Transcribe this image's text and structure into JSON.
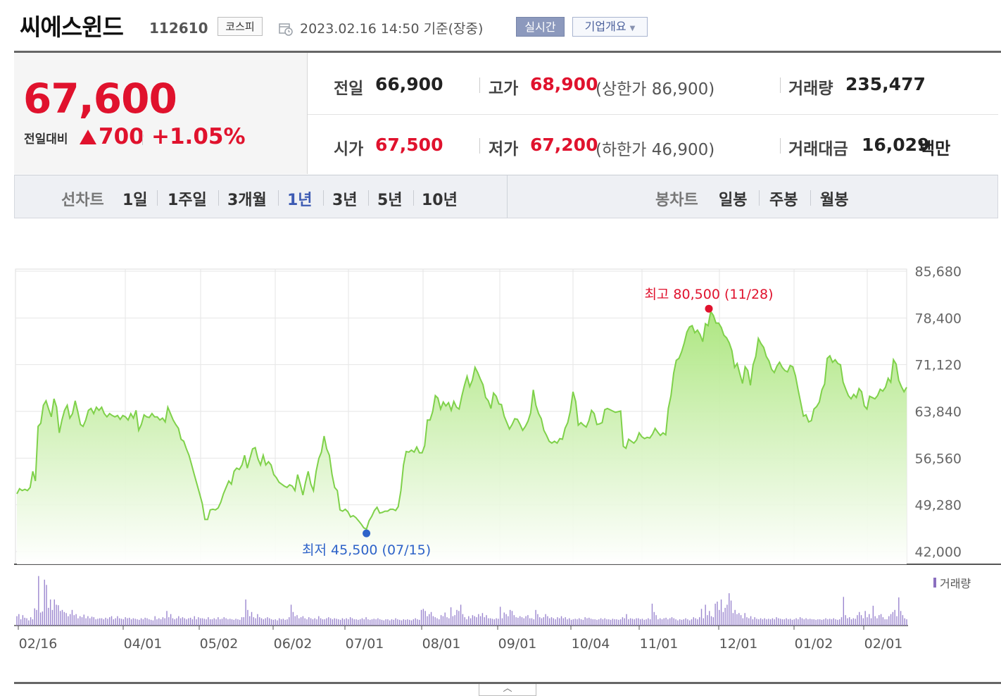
{
  "header": {
    "name": "씨에스윈드",
    "code": "112610",
    "market": "코스피",
    "datetime": "2023.02.16 14:50 기준(장중)",
    "realtime_label": "실시간",
    "overview_label": "기업개요"
  },
  "price": {
    "current": "67,600",
    "prev_diff_label": "전일대비",
    "diff": "700",
    "pct": "+1.05%",
    "up_color": "#e0122d"
  },
  "stats": {
    "prev_label": "전일",
    "prev_value": "66,900",
    "high_label": "고가",
    "high_value": "68,900",
    "upper_limit_label": "(상한가 86,900)",
    "volume_label": "거래량",
    "volume_value": "235,477",
    "open_label": "시가",
    "open_value": "67,500",
    "low_label": "저가",
    "low_value": "67,200",
    "lower_limit_label": "(하한가 46,900)",
    "amount_label": "거래대금",
    "amount_value": "16,029",
    "amount_unit": "백만"
  },
  "period_tabs": {
    "line_label": "선차트",
    "line_items": [
      "1일",
      "1주일",
      "3개월",
      "1년",
      "3년",
      "5년",
      "10년"
    ],
    "active": "1년",
    "candle_label": "봉차트",
    "candle_items": [
      "일봉",
      "주봉",
      "월봉"
    ]
  },
  "chart_data": {
    "type": "area",
    "line_color": "#7fd14a",
    "fill_color": "#c9f0a4",
    "y_ticks": [
      "85,680",
      "78,400",
      "71,120",
      "63,840",
      "56,560",
      "49,280",
      "42,000"
    ],
    "ylim": [
      42000,
      85680
    ],
    "x_ticks": [
      "02/16",
      "04/01",
      "05/02",
      "06/02",
      "07/01",
      "08/01",
      "09/01",
      "10/04",
      "11/01",
      "12/01",
      "01/02",
      "02/01"
    ],
    "high_label": "최고 80,500 (11/28)",
    "low_label": "최저 45,500 (07/15)",
    "high_value": 80500,
    "low_value": 45500,
    "volume_label": "거래량",
    "series": [
      {
        "values": [
          51000,
          51800,
          51500,
          51700,
          51500,
          52000,
          54500,
          53000,
          61500,
          62000,
          64800,
          65500,
          64200,
          63000,
          65800,
          64500,
          60500,
          62500,
          64000,
          64800,
          62800,
          63500,
          65500,
          63800,
          61800,
          61500,
          62500,
          64000,
          64300,
          63500,
          64500,
          64000,
          64500,
          63500,
          63000,
          63500,
          63200,
          63000,
          63200,
          62600,
          63200,
          63000,
          62500,
          63500,
          62800,
          64000,
          60900,
          61800,
          63300,
          63000,
          62900,
          63500,
          63000,
          63000,
          62500,
          62800,
          62200,
          64500,
          63500,
          62500,
          61800,
          61200,
          59500,
          59200,
          58000,
          57000,
          55500,
          54000,
          52500,
          51000,
          49500,
          47000,
          47000,
          48500,
          48600,
          48500,
          48800,
          49700,
          51000,
          52000,
          53000,
          52500,
          54500,
          55000,
          54800,
          55500,
          57000,
          55000,
          56500,
          58000,
          58200,
          56500,
          55500,
          57000,
          55500,
          56000,
          55500,
          54000,
          53500,
          52800,
          52500,
          52200,
          52000,
          52400,
          52200,
          51500,
          54000,
          52500,
          50800,
          52800,
          54500,
          52500,
          51500,
          54500,
          56500,
          57500,
          60000,
          58000,
          57000,
          54000,
          52000,
          51500,
          48500,
          48300,
          48600,
          48200,
          47400,
          47600,
          47300,
          46800,
          46300,
          45700,
          45500,
          46800,
          47500,
          48400,
          48900,
          48000,
          48100,
          48300,
          48300,
          48600,
          48600,
          48400,
          49000,
          51500,
          55500,
          57600,
          57500,
          57800,
          57500,
          58300,
          57400,
          57400,
          58500,
          62500,
          62500,
          63800,
          66300,
          65900,
          64200,
          65300,
          64700,
          65200,
          64000,
          65400,
          64500,
          64200,
          66200,
          67900,
          69300,
          67700,
          68700,
          70700,
          69900,
          68900,
          68000,
          66000,
          65500,
          64300,
          66700,
          66200,
          65000,
          64900,
          63100,
          62100,
          61100,
          61800,
          62700,
          62600,
          61800,
          60900,
          61500,
          62300,
          63600,
          67200,
          64800,
          63500,
          62700,
          60900,
          60100,
          59200,
          58900,
          59200,
          58900,
          59600,
          59500,
          61200,
          62100,
          63900,
          66900,
          65400,
          61700,
          62100,
          61700,
          61400,
          62400,
          64000,
          63500,
          61800,
          61900,
          62100,
          64100,
          64300,
          64100,
          63900,
          63700,
          63800,
          63900,
          58400,
          58100,
          59500,
          59200,
          58900,
          59400,
          60500,
          59900,
          59600,
          59800,
          59700,
          60300,
          61200,
          60600,
          60100,
          60500,
          60200,
          64300,
          66300,
          69800,
          71800,
          72100,
          73100,
          74500,
          76200,
          77000,
          77200,
          76100,
          76500,
          75800,
          74700,
          77500,
          77200,
          79400,
          78800,
          77600,
          77600,
          76900,
          75700,
          75300,
          74500,
          73300,
          70700,
          71300,
          69700,
          68200,
          70800,
          70200,
          67900,
          71100,
          72400,
          75200,
          74400,
          73800,
          72400,
          71700,
          70400,
          69900,
          70900,
          71500,
          70700,
          70200,
          70000,
          71000,
          70800,
          69400,
          67200,
          65200,
          63100,
          63300,
          62200,
          62400,
          64200,
          64600,
          65300,
          67200,
          68100,
          72100,
          72500,
          71500,
          71900,
          71300,
          71100,
          68400,
          67300,
          66300,
          65800,
          66500,
          66000,
          67400,
          66900,
          64700,
          64200,
          66200,
          66000,
          65800,
          66300,
          67300,
          67000,
          67600,
          69000,
          68400,
          71900,
          71200,
          68700,
          67700,
          66900,
          67600
        ]
      }
    ],
    "volume": [
      0.18,
      0.22,
      0.12,
      0.2,
      0.15,
      0.14,
      0.1,
      0.16,
      0.12,
      0.33,
      0.3,
      0.95,
      0.25,
      0.27,
      0.88,
      0.78,
      0.34,
      0.5,
      0.3,
      0.5,
      0.4,
      0.39,
      0.28,
      0.3,
      0.26,
      0.24,
      0.18,
      0.22,
      0.3,
      0.2,
      0.22,
      0.14,
      0.18,
      0.16,
      0.21,
      0.14,
      0.18,
      0.14,
      0.17,
      0.16,
      0.12,
      0.13,
      0.14,
      0.14,
      0.12,
      0.15,
      0.13,
      0.16,
      0.18,
      0.12,
      0.14,
      0.18,
      0.14,
      0.13,
      0.12,
      0.16,
      0.14,
      0.15,
      0.12,
      0.14,
      0.13,
      0.12,
      0.11,
      0.14,
      0.12,
      0.15,
      0.14,
      0.12,
      0.11,
      0.1,
      0.18,
      0.12,
      0.14,
      0.12,
      0.16,
      0.14,
      0.28,
      0.16,
      0.22,
      0.14,
      0.12,
      0.14,
      0.18,
      0.14,
      0.16,
      0.14,
      0.12,
      0.14,
      0.15,
      0.12,
      0.18,
      0.12,
      0.16,
      0.14,
      0.14,
      0.13,
      0.12,
      0.16,
      0.12,
      0.12,
      0.14,
      0.12,
      0.16,
      0.12,
      0.13,
      0.16,
      0.14,
      0.12,
      0.13,
      0.12,
      0.11,
      0.13,
      0.12,
      0.11,
      0.16,
      0.16,
      0.5,
      0.3,
      0.18,
      0.26,
      0.16,
      0.14,
      0.22,
      0.16,
      0.14,
      0.12,
      0.14,
      0.16,
      0.14,
      0.12,
      0.11,
      0.12,
      0.1,
      0.14,
      0.12,
      0.13,
      0.11,
      0.12,
      0.16,
      0.4,
      0.26,
      0.18,
      0.2,
      0.14,
      0.16,
      0.18,
      0.14,
      0.12,
      0.16,
      0.14,
      0.12,
      0.14,
      0.12,
      0.18,
      0.14,
      0.12,
      0.12,
      0.14,
      0.16,
      0.14,
      0.12,
      0.14,
      0.13,
      0.12,
      0.11,
      0.14,
      0.12,
      0.14,
      0.12,
      0.16,
      0.14,
      0.12,
      0.12,
      0.11,
      0.12,
      0.14,
      0.12,
      0.16,
      0.12,
      0.11,
      0.12,
      0.13,
      0.12,
      0.14,
      0.12,
      0.11,
      0.1,
      0.12,
      0.12,
      0.1,
      0.12,
      0.11,
      0.14,
      0.12,
      0.11,
      0.1,
      0.12,
      0.11,
      0.12,
      0.11,
      0.1,
      0.12,
      0.14,
      0.12,
      0.11,
      0.3,
      0.32,
      0.28,
      0.18,
      0.22,
      0.26,
      0.18,
      0.16,
      0.14,
      0.12,
      0.2,
      0.18,
      0.25,
      0.16,
      0.14,
      0.35,
      0.18,
      0.2,
      0.3,
      0.28,
      0.4,
      0.22,
      0.16,
      0.12,
      0.18,
      0.14,
      0.2,
      0.18,
      0.16,
      0.22,
      0.18,
      0.24,
      0.16,
      0.2,
      0.14,
      0.14,
      0.13,
      0.12,
      0.14,
      0.13,
      0.36,
      0.14,
      0.25,
      0.22,
      0.18,
      0.3,
      0.28,
      0.2,
      0.16,
      0.15,
      0.18,
      0.16,
      0.14,
      0.18,
      0.2,
      0.14,
      0.14,
      0.12,
      0.3,
      0.22,
      0.16,
      0.14,
      0.16,
      0.22,
      0.18,
      0.14,
      0.16,
      0.14,
      0.12,
      0.16,
      0.14,
      0.18,
      0.14,
      0.16,
      0.12,
      0.14,
      0.11,
      0.12,
      0.13,
      0.12,
      0.14,
      0.12,
      0.11,
      0.16,
      0.14,
      0.15,
      0.13,
      0.12,
      0.12,
      0.11,
      0.12,
      0.14,
      0.12,
      0.14,
      0.12,
      0.12,
      0.11,
      0.13,
      0.12,
      0.12,
      0.11,
      0.12,
      0.16,
      0.14,
      0.22,
      0.12,
      0.14,
      0.13,
      0.12,
      0.14,
      0.14,
      0.12,
      0.13,
      0.11,
      0.12,
      0.14,
      0.12,
      0.42,
      0.26,
      0.2,
      0.12,
      0.14,
      0.12,
      0.14,
      0.15,
      0.12,
      0.14,
      0.16,
      0.14,
      0.12,
      0.1,
      0.12,
      0.11,
      0.12,
      0.14,
      0.12,
      0.1,
      0.12,
      0.16,
      0.14,
      0.12,
      0.16,
      0.32,
      0.14,
      0.4,
      0.2,
      0.28,
      0.18,
      0.16,
      0.42,
      0.46,
      0.3,
      0.5,
      0.26,
      0.34,
      0.4,
      0.62,
      0.48,
      0.24,
      0.3,
      0.22,
      0.24,
      0.2,
      0.14,
      0.24,
      0.16,
      0.14,
      0.18,
      0.12,
      0.16,
      0.13,
      0.12,
      0.14,
      0.12,
      0.14,
      0.12,
      0.13,
      0.12,
      0.14,
      0.12,
      0.16,
      0.14,
      0.13,
      0.12,
      0.12,
      0.14,
      0.12,
      0.13,
      0.11,
      0.12,
      0.14,
      0.12,
      0.16,
      0.14,
      0.12,
      0.14,
      0.12,
      0.13,
      0.12,
      0.12,
      0.11,
      0.12,
      0.12,
      0.11,
      0.12,
      0.14,
      0.12,
      0.13,
      0.12,
      0.14,
      0.12,
      0.11,
      0.12,
      0.16,
      0.55,
      0.2,
      0.14,
      0.16,
      0.12,
      0.14,
      0.13,
      0.2,
      0.26,
      0.2,
      0.14,
      0.28,
      0.16,
      0.22,
      0.14,
      0.38,
      0.18,
      0.14,
      0.2,
      0.22,
      0.16,
      0.12,
      0.12,
      0.18,
      0.22,
      0.26,
      0.3,
      0.18,
      0.54,
      0.28,
      0.2,
      0.14,
      0.12
    ]
  }
}
